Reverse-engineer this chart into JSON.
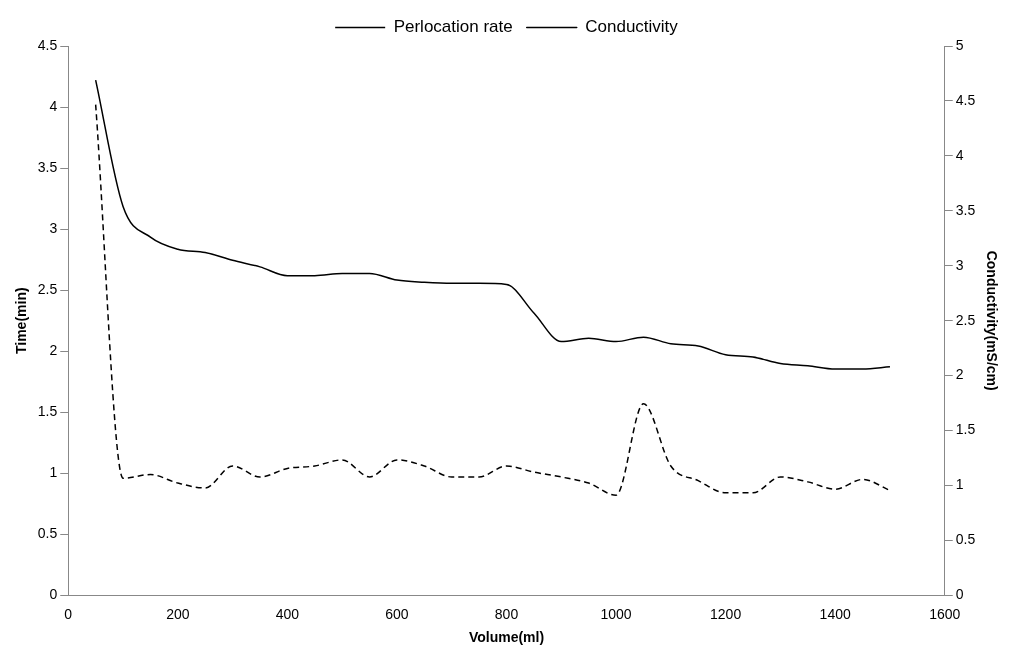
{
  "chart_data": {
    "type": "line",
    "xlabel": "Volume(ml)",
    "ylabel": "Time(min)",
    "y2label": "Conductivity(mS/cm)",
    "x": [
      50,
      100,
      150,
      200,
      250,
      300,
      350,
      400,
      450,
      500,
      550,
      600,
      650,
      700,
      750,
      800,
      850,
      900,
      950,
      1000,
      1050,
      1100,
      1150,
      1200,
      1250,
      1300,
      1350,
      1400,
      1450,
      1500
    ],
    "xlim": [
      0,
      1600
    ],
    "xticks": [
      0,
      200,
      400,
      600,
      800,
      1000,
      1200,
      1400,
      1600
    ],
    "ylim": [
      0,
      4.5
    ],
    "yticks": [
      0,
      0.5,
      1,
      1.5,
      2,
      2.5,
      3,
      3.5,
      4,
      4.5
    ],
    "y2lim": [
      0,
      5
    ],
    "y2ticks": [
      0,
      0.5,
      1,
      1.5,
      2,
      2.5,
      3,
      3.5,
      4,
      4.5,
      5
    ],
    "legend": "top",
    "grid": false,
    "marker": "none",
    "series": [
      {
        "name": "Perlocation rate",
        "color": "#000000",
        "line_style": "dashed",
        "values": [
          4.02,
          0.96,
          0.99,
          0.92,
          0.88,
          1.06,
          0.97,
          1.04,
          1.06,
          1.11,
          0.97,
          1.11,
          1.06,
          0.97,
          0.97,
          1.06,
          1.01,
          0.97,
          0.92,
          0.82,
          1.57,
          1.06,
          0.94,
          0.84,
          0.84,
          0.97,
          0.93,
          0.87,
          0.95,
          0.86
        ]
      },
      {
        "name": "Conductivity",
        "color": "#000000",
        "line_style": "solid",
        "axis": "y2",
        "values": [
          4.69,
          3.54,
          3.26,
          3.15,
          3.12,
          3.05,
          2.99,
          2.91,
          2.91,
          2.93,
          2.93,
          2.87,
          2.85,
          2.84,
          2.84,
          2.83,
          2.57,
          2.31,
          2.34,
          2.31,
          2.35,
          2.29,
          2.27,
          2.19,
          2.17,
          2.11,
          2.09,
          2.06,
          2.06,
          2.08
        ]
      }
    ]
  }
}
